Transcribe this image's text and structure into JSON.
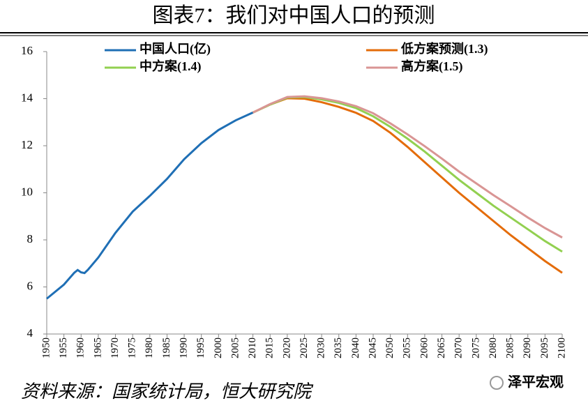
{
  "chart_data": {
    "type": "line",
    "title": "图表7：我们对中国人口的预测",
    "source": "资料来源：国家统计局，恒大研究院",
    "watermark": "泽平宏观",
    "x": [
      1950,
      1955,
      1958,
      1959,
      1960,
      1961,
      1962,
      1965,
      1970,
      1975,
      1980,
      1985,
      1990,
      1995,
      2000,
      2005,
      2010,
      2015,
      2020,
      2025,
      2030,
      2035,
      2040,
      2045,
      2050,
      2055,
      2060,
      2065,
      2070,
      2075,
      2080,
      2085,
      2090,
      2095,
      2100
    ],
    "series": [
      {
        "name": "中国人口(亿)",
        "color": "#1f6fb5",
        "values": [
          5.5,
          6.1,
          6.6,
          6.72,
          6.62,
          6.59,
          6.73,
          7.25,
          8.3,
          9.2,
          9.87,
          10.59,
          11.43,
          12.11,
          12.67,
          13.08,
          13.41,
          null,
          null,
          null,
          null,
          null,
          null,
          null,
          null,
          null,
          null,
          null,
          null,
          null,
          null,
          null,
          null,
          null,
          null
        ]
      },
      {
        "name": "低方案预测(1.3)",
        "color": "#e46c0a",
        "values": [
          null,
          null,
          null,
          null,
          null,
          null,
          null,
          null,
          null,
          null,
          null,
          null,
          null,
          null,
          null,
          null,
          13.41,
          13.75,
          14.02,
          14.0,
          13.85,
          13.65,
          13.4,
          13.05,
          12.55,
          11.95,
          11.3,
          10.65,
          10.0,
          9.4,
          8.8,
          8.2,
          7.65,
          7.1,
          6.6
        ]
      },
      {
        "name": "中方案(1.4)",
        "color": "#92d050",
        "values": [
          null,
          null,
          null,
          null,
          null,
          null,
          null,
          null,
          null,
          null,
          null,
          null,
          null,
          null,
          null,
          null,
          13.41,
          13.75,
          14.05,
          14.07,
          13.97,
          13.82,
          13.6,
          13.25,
          12.8,
          12.3,
          11.75,
          11.15,
          10.55,
          10.0,
          9.45,
          8.95,
          8.45,
          7.95,
          7.5
        ]
      },
      {
        "name": "高方案(1.5)",
        "color": "#d99594",
        "values": [
          null,
          null,
          null,
          null,
          null,
          null,
          null,
          null,
          null,
          null,
          null,
          null,
          null,
          null,
          null,
          null,
          13.41,
          13.77,
          14.07,
          14.1,
          14.02,
          13.88,
          13.68,
          13.38,
          12.95,
          12.48,
          11.98,
          11.45,
          10.9,
          10.4,
          9.9,
          9.43,
          8.95,
          8.5,
          8.1
        ]
      }
    ],
    "xlim": [
      1950,
      2100
    ],
    "xticks": [
      1950,
      1955,
      1960,
      1965,
      1970,
      1975,
      1980,
      1985,
      1990,
      1995,
      2000,
      2005,
      2010,
      2015,
      2020,
      2025,
      2030,
      2035,
      2040,
      2045,
      2050,
      2055,
      2060,
      2065,
      2070,
      2075,
      2080,
      2085,
      2090,
      2095,
      2100
    ],
    "ylim": [
      4,
      16
    ],
    "yticks": [
      4,
      6,
      8,
      10,
      12,
      14,
      16
    ]
  }
}
